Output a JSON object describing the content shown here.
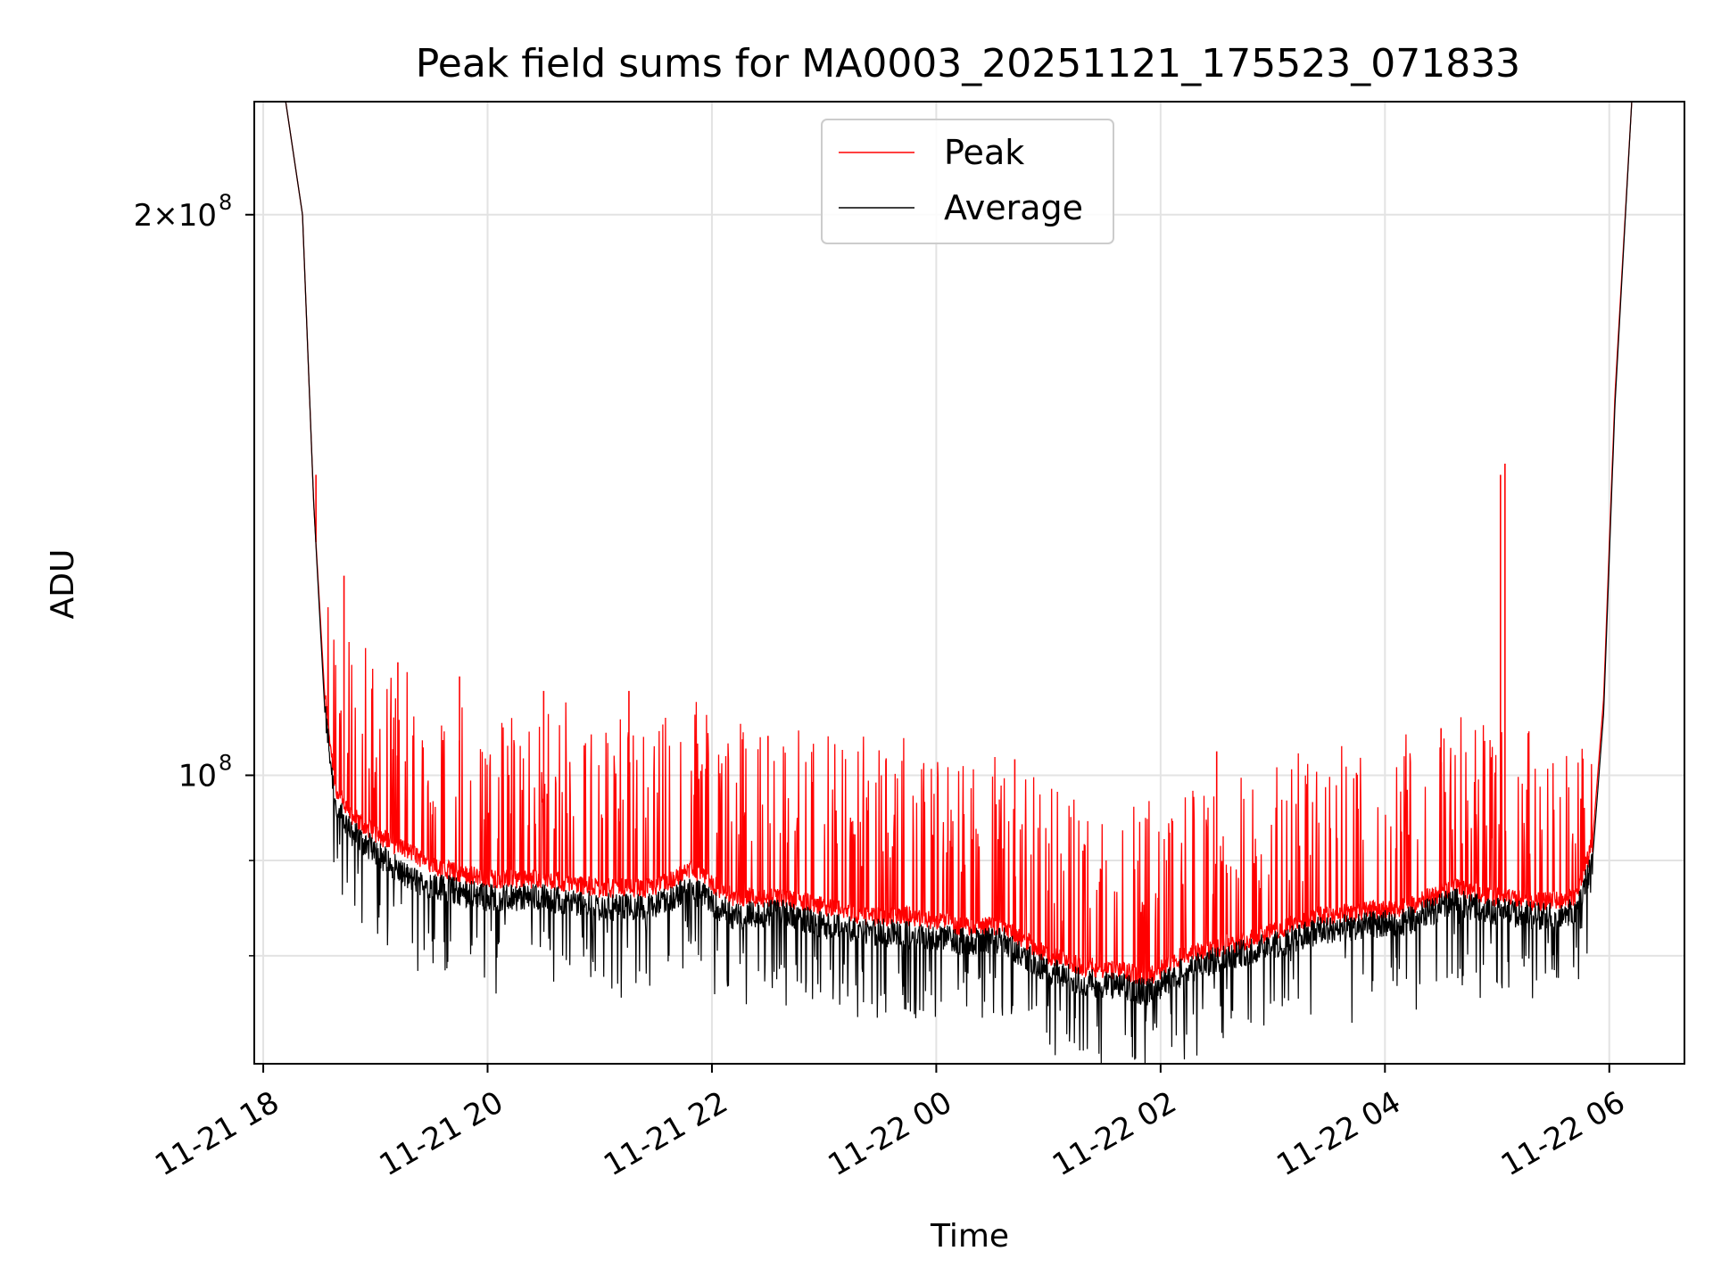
{
  "chart_data": {
    "type": "line",
    "title": "Peak field sums for MA0003_20251121_175523_071833",
    "xlabel": "Time",
    "ylabel": "ADU",
    "yscale": "log",
    "grid": true,
    "legend_position": "upper-center",
    "xlim_hours": [
      17.92,
      30.67
    ],
    "ylim": [
      70000000,
      230000000
    ],
    "x_ticks": [
      {
        "hours": 18,
        "label": "11-21 18"
      },
      {
        "hours": 20,
        "label": "11-21 20"
      },
      {
        "hours": 22,
        "label": "11-21 22"
      },
      {
        "hours": 24,
        "label": "11-22 00"
      },
      {
        "hours": 26,
        "label": "11-22 02"
      },
      {
        "hours": 28,
        "label": "11-22 04"
      },
      {
        "hours": 30,
        "label": "11-22 06"
      }
    ],
    "y_major_ticks": [
      {
        "value": 100000000,
        "label": "10",
        "exp": "8"
      },
      {
        "value": 200000000,
        "label": "2×10",
        "exp": "8"
      }
    ],
    "y_minor_ticks": [
      80000000,
      90000000
    ],
    "series": [
      {
        "name": "Peak",
        "color": "#ff0000",
        "x_hours": [
          17.92,
          18.2,
          18.35,
          18.45,
          18.55,
          18.65,
          18.8,
          19.0,
          19.3,
          19.6,
          20.0,
          20.5,
          21.0,
          21.5,
          21.8,
          22.2,
          22.6,
          23.0,
          23.4,
          23.8,
          24.2,
          24.6,
          25.0,
          25.3,
          25.6,
          25.9,
          26.2,
          26.6,
          27.0,
          27.4,
          27.8,
          28.2,
          28.6,
          29.0,
          29.4,
          29.7,
          29.85,
          29.95,
          30.05,
          30.2,
          30.67
        ],
        "values": [
          230000000,
          230000000,
          200000000,
          140000000,
          110000000,
          98000000,
          95000000,
          93000000,
          91000000,
          89000000,
          88000000,
          88000000,
          87000000,
          87000000,
          89000000,
          86000000,
          86000000,
          85000000,
          84000000,
          84000000,
          83000000,
          83000000,
          80000000,
          79000000,
          78500000,
          78000000,
          80000000,
          81000000,
          82500000,
          84000000,
          84500000,
          85000000,
          87000000,
          86000000,
          85500000,
          86000000,
          92000000,
          110000000,
          160000000,
          230000000,
          230000000
        ]
      },
      {
        "name": "Average",
        "color": "#000000",
        "x_hours": [
          17.92,
          18.2,
          18.35,
          18.45,
          18.55,
          18.65,
          18.8,
          19.0,
          19.3,
          19.6,
          20.0,
          20.5,
          21.0,
          21.5,
          21.8,
          22.2,
          22.6,
          23.0,
          23.4,
          23.8,
          24.2,
          24.6,
          25.0,
          25.3,
          25.6,
          25.9,
          26.2,
          26.6,
          27.0,
          27.4,
          27.8,
          28.2,
          28.6,
          29.0,
          29.4,
          29.7,
          29.85,
          29.95,
          30.05,
          30.2,
          30.67
        ],
        "values": [
          230000000,
          230000000,
          200000000,
          140000000,
          108000000,
          96000000,
          93000000,
          91000000,
          88000000,
          87000000,
          86000000,
          86000000,
          85000000,
          85000000,
          87000000,
          84000000,
          84500000,
          83000000,
          82500000,
          82000000,
          81500000,
          81500000,
          78500000,
          77500000,
          77000000,
          76500000,
          78500000,
          80000000,
          81000000,
          82500000,
          83000000,
          83500000,
          85500000,
          84500000,
          84000000,
          84500000,
          90000000,
          108000000,
          158000000,
          230000000,
          230000000
        ]
      }
    ],
    "spikes": [
      {
        "series": "Peak",
        "hours": 18.47,
        "value": 145000000
      },
      {
        "series": "Peak",
        "hours": 18.72,
        "value": 128000000
      },
      {
        "series": "Peak",
        "hours": 19.2,
        "value": 115000000
      },
      {
        "series": "Peak",
        "hours": 19.75,
        "value": 113000000
      },
      {
        "series": "Peak",
        "hours": 20.5,
        "value": 111000000
      },
      {
        "series": "Peak",
        "hours": 21.26,
        "value": 111000000
      },
      {
        "series": "Peak",
        "hours": 22.5,
        "value": 105000000
      },
      {
        "series": "Peak",
        "hours": 24.7,
        "value": 102000000
      },
      {
        "series": "Peak",
        "hours": 26.5,
        "value": 103000000
      },
      {
        "series": "Peak",
        "hours": 28.5,
        "value": 106000000
      },
      {
        "series": "Peak",
        "hours": 29.03,
        "value": 145000000
      },
      {
        "series": "Peak",
        "hours": 29.07,
        "value": 147000000
      }
    ]
  }
}
